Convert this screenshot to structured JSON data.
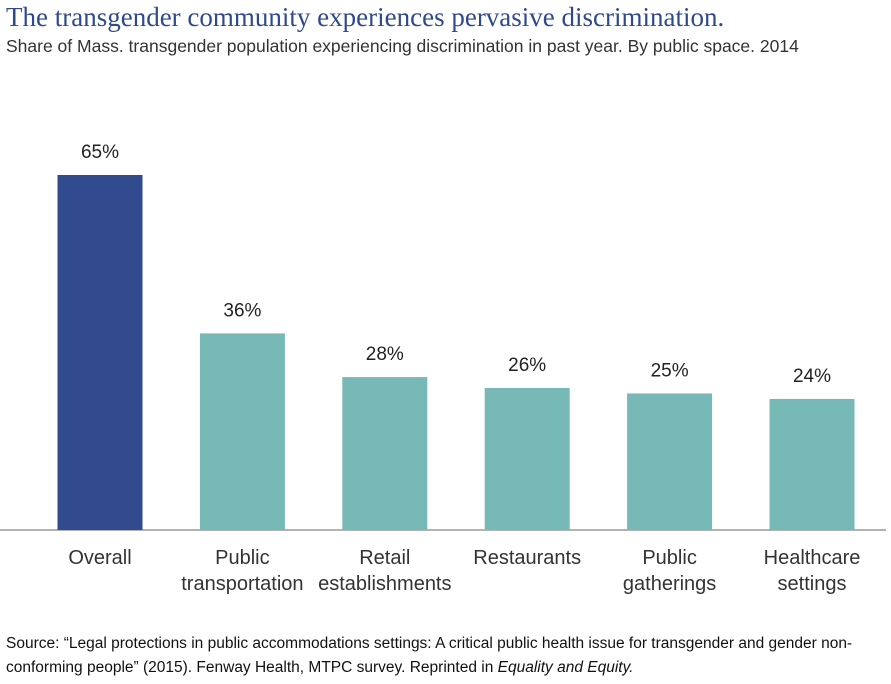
{
  "chart_data": {
    "type": "bar",
    "title": "The transgender community experiences pervasive discrimination.",
    "subtitle": "Share of Mass. transgender population experiencing discrimination in past year. By public space. 2014",
    "categories": [
      "Overall",
      "Public transportation",
      "Retail establishments",
      "Restaurants",
      "Public gatherings",
      "Healthcare settings"
    ],
    "values": [
      65,
      36,
      28,
      26,
      25,
      24
    ],
    "value_labels": [
      "65%",
      "36%",
      "28%",
      "26%",
      "25%",
      "24%"
    ],
    "colors": [
      "#324a8e",
      "#77b9b7",
      "#77b9b7",
      "#77b9b7",
      "#77b9b7",
      "#77b9b7"
    ],
    "source": [
      "Source: “Legal protections in public accommodations settings: A critical public health issue for transgender and gender non-conforming people” (2015). Fenway Health, MTPC survey. Reprinted in ",
      "Equality and Equity."
    ]
  }
}
